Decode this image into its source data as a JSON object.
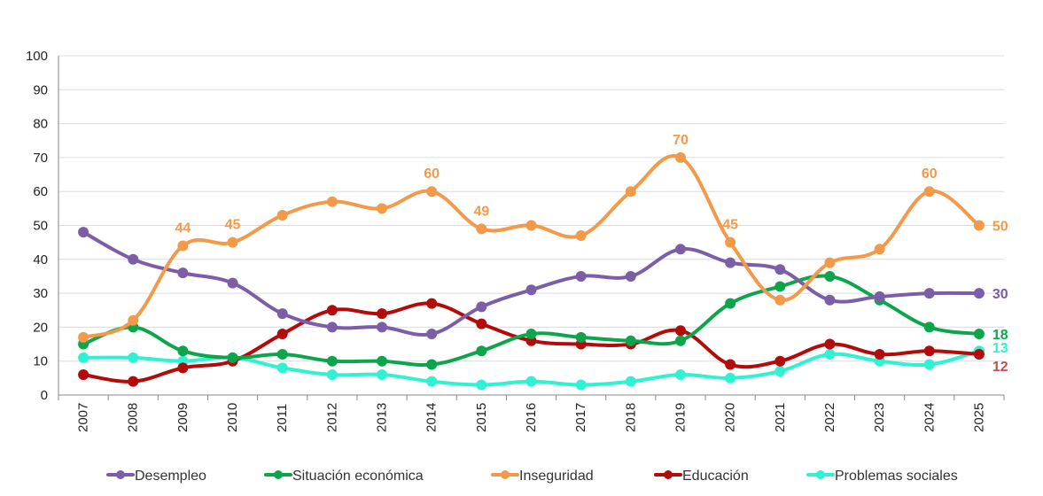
{
  "chart_data": {
    "type": "line",
    "categories": [
      "2007",
      "2008",
      "2009",
      "2010",
      "2011",
      "2012",
      "2013",
      "2014",
      "2015",
      "2016",
      "2017",
      "2018",
      "2019",
      "2020",
      "2021",
      "2022",
      "2023",
      "2024",
      "2025"
    ],
    "ylim": [
      0,
      100
    ],
    "yticks": [
      0,
      10,
      20,
      30,
      40,
      50,
      60,
      70,
      80,
      90,
      100
    ],
    "grid": true,
    "legend_position": "bottom",
    "series": [
      {
        "name": "Desempleo",
        "color": "#7b5ea7",
        "values": [
          48,
          40,
          36,
          33,
          24,
          20,
          20,
          18,
          26,
          31,
          35,
          35,
          43,
          39,
          37,
          28,
          29,
          30,
          30
        ],
        "labels": {
          "18": "30"
        }
      },
      {
        "name": "Situación económica",
        "color": "#0ca54b",
        "values": [
          15,
          20,
          13,
          11,
          12,
          10,
          10,
          9,
          13,
          18,
          17,
          16,
          16,
          27,
          32,
          35,
          28,
          20,
          18
        ],
        "labels": {
          "18": "18"
        }
      },
      {
        "name": "Inseguridad",
        "color": "#f29a4a",
        "values": [
          17,
          22,
          44,
          45,
          53,
          57,
          55,
          60,
          49,
          50,
          47,
          60,
          70,
          45,
          28,
          39,
          43,
          60,
          50
        ],
        "labels": {
          "2": "44",
          "3": "45",
          "7": "60",
          "8": "49",
          "12": "70",
          "13": "45",
          "17": "60",
          "18": "50"
        }
      },
      {
        "name": "Educación",
        "color": "#b30a0a",
        "values": [
          6,
          4,
          8,
          10,
          18,
          25,
          24,
          27,
          21,
          16,
          15,
          15,
          19,
          9,
          10,
          15,
          12,
          13,
          12
        ],
        "labels": {
          "18": "12"
        }
      },
      {
        "name": "Problemas sociales",
        "color": "#2ef2d2",
        "values": [
          11,
          11,
          10,
          11,
          8,
          6,
          6,
          4,
          3,
          4,
          3,
          4,
          6,
          5,
          7,
          12,
          10,
          9,
          13
        ],
        "labels": {
          "18": "13"
        }
      }
    ],
    "end_label_colors": {
      "Desempleo": "#7b5ea7",
      "Situación económica": "#0ca54b",
      "Inseguridad": "#f29a4a",
      "Educación": "#c0504d",
      "Problemas sociales": "#2ef2d2"
    }
  }
}
